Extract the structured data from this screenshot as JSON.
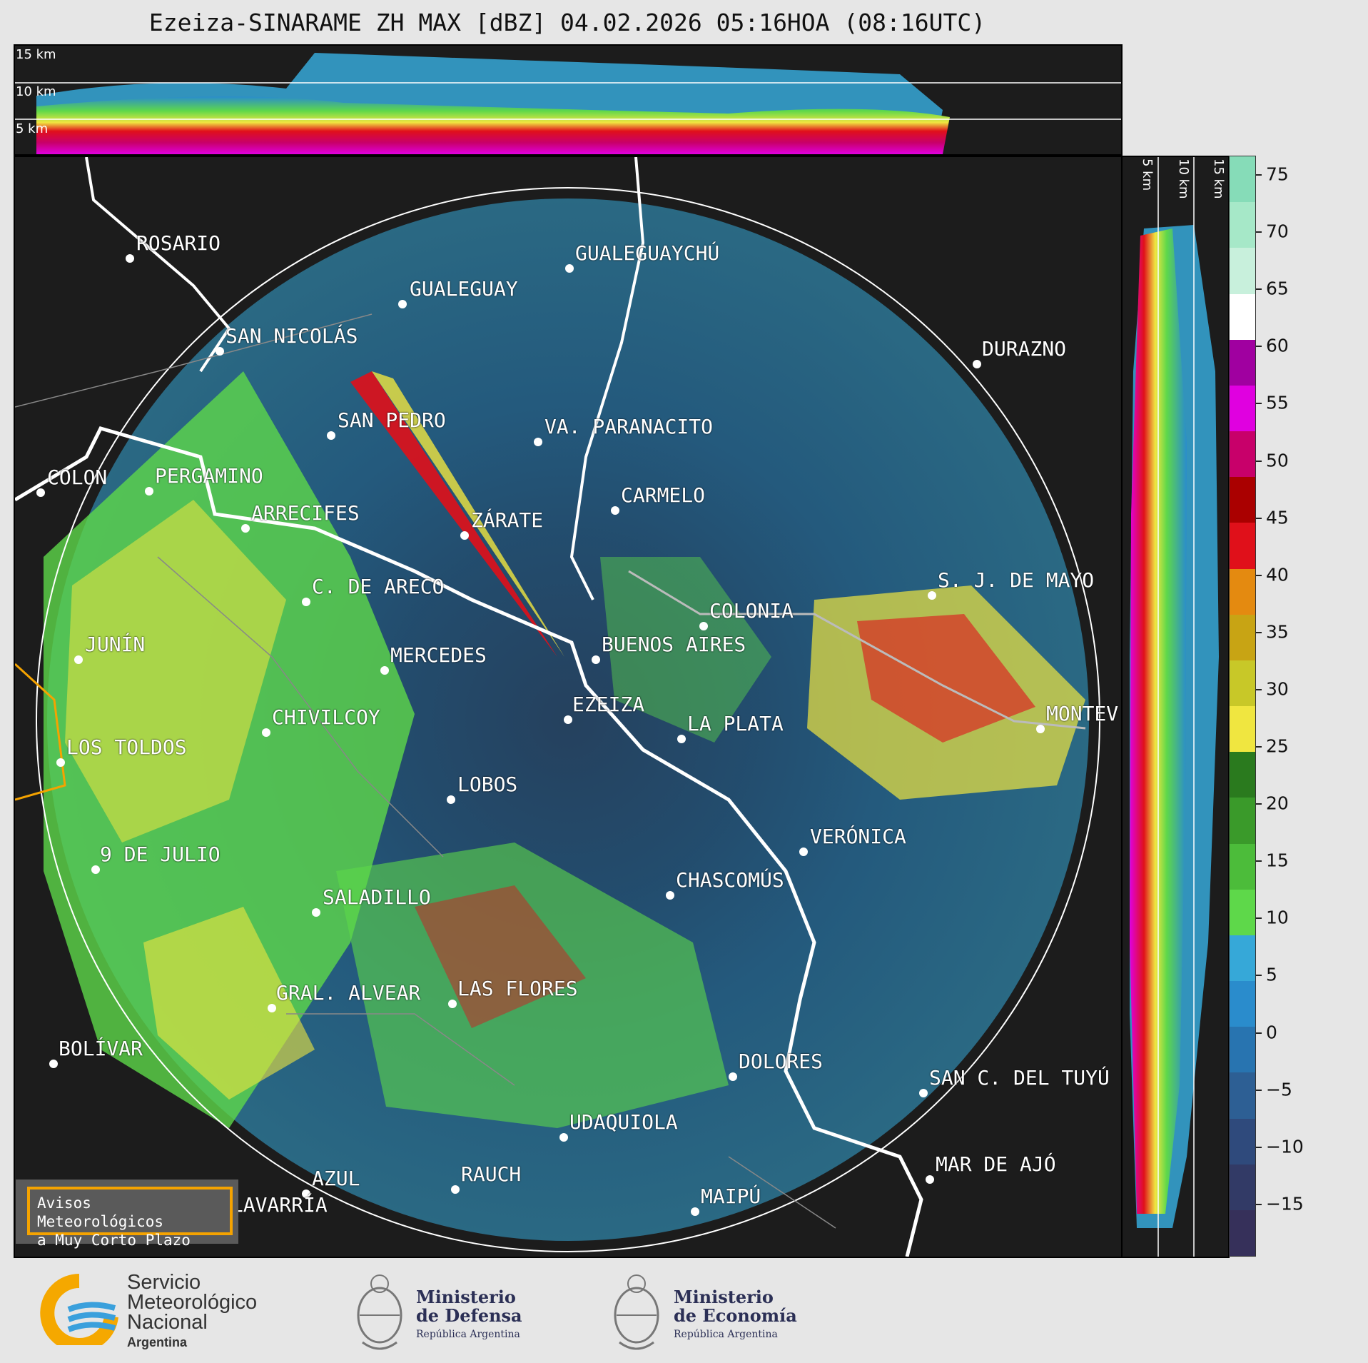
{
  "title": "Ezeiza-SINARAME ZH MAX [dBZ] 04.02.2026 05:16HOA (08:16UTC)",
  "height_labels_top": [
    "15 km",
    "10 km",
    "5 km"
  ],
  "height_labels_right": [
    "5 km",
    "10 km",
    "15 km"
  ],
  "colorbar": {
    "ticks": [
      "75",
      "70",
      "65",
      "60",
      "55",
      "50",
      "45",
      "40",
      "35",
      "30",
      "25",
      "20",
      "15",
      "10",
      "5",
      "0",
      "−5",
      "−10",
      "−15"
    ],
    "colors_top_to_bottom": [
      "#86dcb8",
      "#a6e8c8",
      "#c8f0dc",
      "#ffffff",
      "#a000a0",
      "#e000e0",
      "#c8006a",
      "#aa0000",
      "#e0101a",
      "#e48a10",
      "#c8a414",
      "#c8c828",
      "#f0e640",
      "#2a7a1e",
      "#3a9a2a",
      "#4cbc3a",
      "#5ed84a",
      "#36a8d8",
      "#2a8ccc",
      "#2874b0",
      "#2d5f94",
      "#2f4a7c",
      "#323a66",
      "#36305a"
    ]
  },
  "cities": [
    {
      "name": "ROSARIO"
    },
    {
      "name": "GUALEGUAYCHÚ"
    },
    {
      "name": "GUALEGUAY"
    },
    {
      "name": "SAN NICOLÁS"
    },
    {
      "name": "DURAZNO"
    },
    {
      "name": "SAN PEDRO"
    },
    {
      "name": "VA. PARANACITO"
    },
    {
      "name": "COLON"
    },
    {
      "name": "PERGAMINO"
    },
    {
      "name": "CARMELO"
    },
    {
      "name": "ARRECIFES"
    },
    {
      "name": "ZÁRATE"
    },
    {
      "name": "S. J. DE MAYO"
    },
    {
      "name": "C. DE ARECO"
    },
    {
      "name": "COLONIA"
    },
    {
      "name": "JUNÍN"
    },
    {
      "name": "BUENOS AIRES"
    },
    {
      "name": "MERCEDES"
    },
    {
      "name": "EZEIZA"
    },
    {
      "name": "MONTEV"
    },
    {
      "name": "CHIVILCOY"
    },
    {
      "name": "LA PLATA"
    },
    {
      "name": "LOS TOLDOS"
    },
    {
      "name": "LOBOS"
    },
    {
      "name": "VERÓNICA"
    },
    {
      "name": "9 DE JULIO"
    },
    {
      "name": "CHASCOMÚS"
    },
    {
      "name": "SALADILLO"
    },
    {
      "name": "GRAL. ALVEAR"
    },
    {
      "name": "LAS FLORES"
    },
    {
      "name": "BOLÍVAR"
    },
    {
      "name": "DOLORES"
    },
    {
      "name": "SAN C. DEL TUYÚ"
    },
    {
      "name": "UDAQUIOLA"
    },
    {
      "name": "MAR DE AJÓ"
    },
    {
      "name": "RAUCH"
    },
    {
      "name": "AZUL"
    },
    {
      "name": "MAIPÚ"
    },
    {
      "name": "OLAVARRÍA"
    }
  ],
  "aviso": {
    "line1": "Avisos Meteorológicos",
    "line2": "a Muy Corto Plazo"
  },
  "logos": {
    "smn": {
      "line1": "Servicio",
      "line2": "Meteorológico",
      "line3": "Nacional",
      "sub": "Argentina"
    },
    "defensa": {
      "line1": "Ministerio",
      "line2": "de Defensa",
      "sub": "República Argentina"
    },
    "economia": {
      "line1": "Ministerio",
      "line2": "de Economía",
      "sub": "República Argentina"
    }
  }
}
